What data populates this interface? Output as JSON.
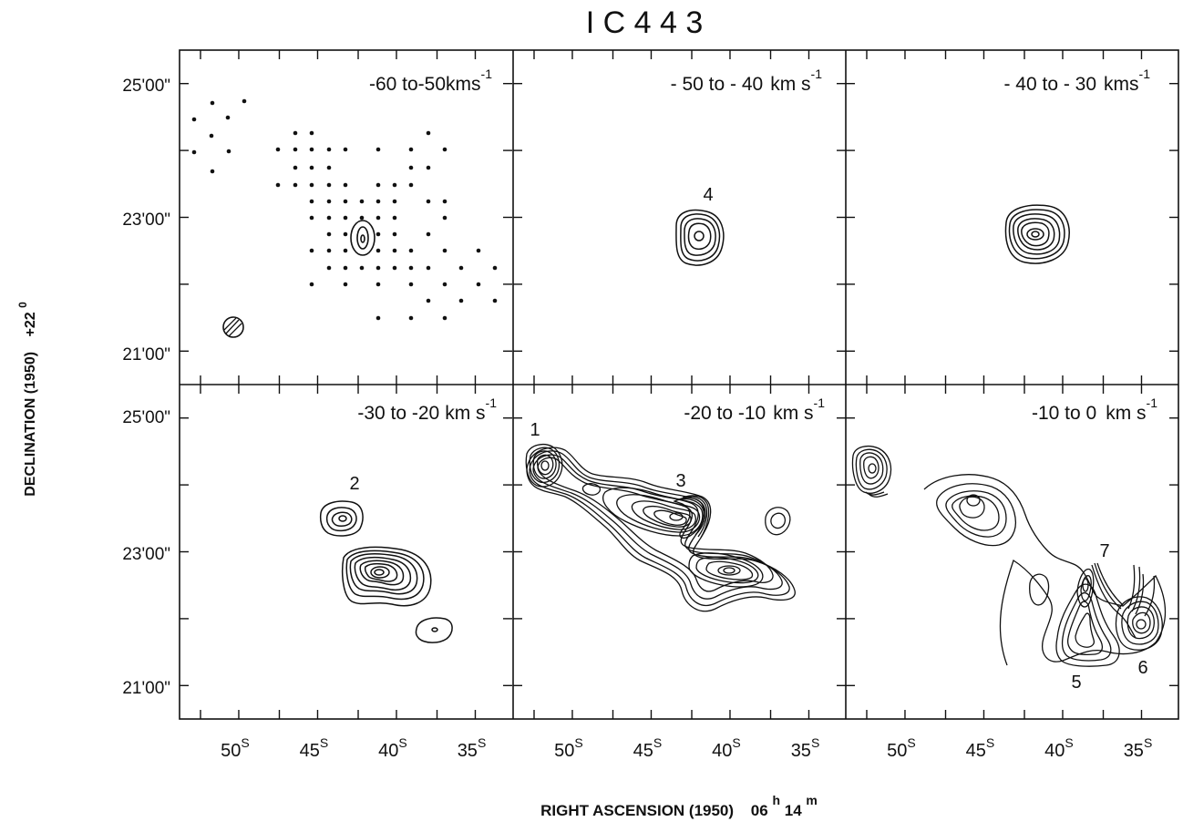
{
  "title": "I C 4 4 3",
  "axes": {
    "ylabel_main": "DECLINATION (1950)",
    "ylabel_offset": "+22",
    "ylabel_offset_sup": "0",
    "xlabel_main": "RIGHT ASCENSION (1950)",
    "xlabel_hours": "06",
    "xlabel_h_sup": "h",
    "xlabel_minutes": "14",
    "xlabel_m_sup": "m",
    "dec_ticks_top": [
      "25'00\"",
      "23'00\"",
      "21'00\""
    ],
    "dec_ticks_bottom": [
      "25'00\"",
      "23'00\"",
      "21'00\""
    ],
    "ra_ticks": [
      "50",
      "45",
      "40",
      "35"
    ],
    "ra_tick_sup": "S"
  },
  "panels": [
    {
      "range": "-60 to-50",
      "unit": "kms",
      "sup": "-1",
      "features": [
        {
          "label": "",
          "kind": "weak core"
        }
      ],
      "sampling_grid": true,
      "beam": true
    },
    {
      "range": "- 50 to - 40",
      "unit": "km s",
      "sup": "-1",
      "features": [
        {
          "label": "4",
          "kind": "compact clump"
        }
      ]
    },
    {
      "range": "- 40 to - 30",
      "unit": "kms",
      "sup": "-1",
      "features": [
        {
          "label": "",
          "kind": "compact clump"
        }
      ]
    },
    {
      "range": "-30 to -20",
      "unit": "km s",
      "sup": "-1",
      "features": [
        {
          "label": "2",
          "kind": "small clump"
        },
        {
          "label": "",
          "kind": "main clump"
        }
      ]
    },
    {
      "range": "-20 to -10",
      "unit": "km s",
      "sup": "-1",
      "features": [
        {
          "label": "1",
          "kind": "clump"
        },
        {
          "label": "3",
          "kind": "ridge"
        }
      ]
    },
    {
      "range": "-10 to 0",
      "unit": "km s",
      "sup": "-1",
      "features": [
        {
          "label": "7",
          "kind": "clump"
        },
        {
          "label": "5",
          "kind": "clump"
        },
        {
          "label": "6",
          "kind": "clump"
        }
      ]
    }
  ],
  "chart_data": {
    "type": "contour-map-grid",
    "title": "I C 4 4 3",
    "x_axis": "RIGHT ASCENSION (1950) 06h14m",
    "y_axis": "DECLINATION (1950) +22°",
    "ra_ticks_s": [
      50,
      45,
      40,
      35
    ],
    "dec_ticks_arcmin": [
      25,
      23,
      21
    ]
  }
}
